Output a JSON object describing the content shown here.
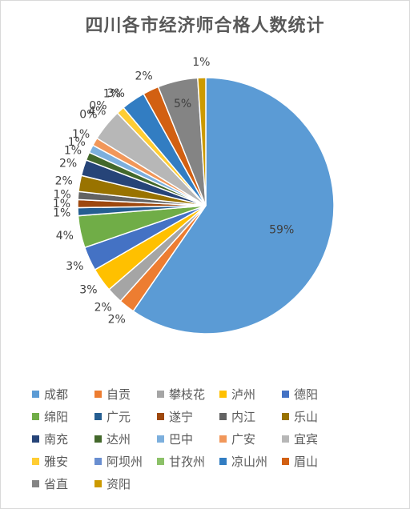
{
  "chart_data": {
    "type": "pie",
    "title": "四川各市经济师合格人数统计",
    "categories": [
      "成都",
      "自贡",
      "攀枝花",
      "泸州",
      "德阳",
      "绵阳",
      "广元",
      "遂宁",
      "内江",
      "乐山",
      "南充",
      "达州",
      "巴中",
      "广安",
      "宜宾",
      "雅安",
      "阿坝州",
      "甘孜州",
      "凉山州",
      "眉山",
      "省直",
      "资阳"
    ],
    "values": [
      59,
      2,
      2,
      3,
      3,
      4,
      1,
      1,
      1,
      2,
      2,
      1,
      1,
      1,
      4,
      1,
      0,
      0,
      3,
      2,
      5,
      1
    ],
    "data_labels": [
      "59%",
      "2%",
      "2%",
      "3%",
      "3%",
      "4%",
      "1%",
      "1%",
      "1%",
      "2%",
      "2%",
      "1%",
      "1%",
      "1%",
      "4%",
      "1%",
      "0%",
      "0%",
      "3%",
      "2%",
      "5%",
      "1%"
    ],
    "colors": [
      "#5b9bd5",
      "#ed7d31",
      "#a5a5a5",
      "#ffc000",
      "#4472c4",
      "#70ad47",
      "#255e91",
      "#9e480e",
      "#636363",
      "#997300",
      "#264478",
      "#43682b",
      "#7cafdd",
      "#f1975a",
      "#b7b7b7",
      "#ffcd33",
      "#698ed0",
      "#8cc168",
      "#327dc2",
      "#d26012",
      "#848484",
      "#cc9a00"
    ],
    "legend_position": "bottom"
  }
}
